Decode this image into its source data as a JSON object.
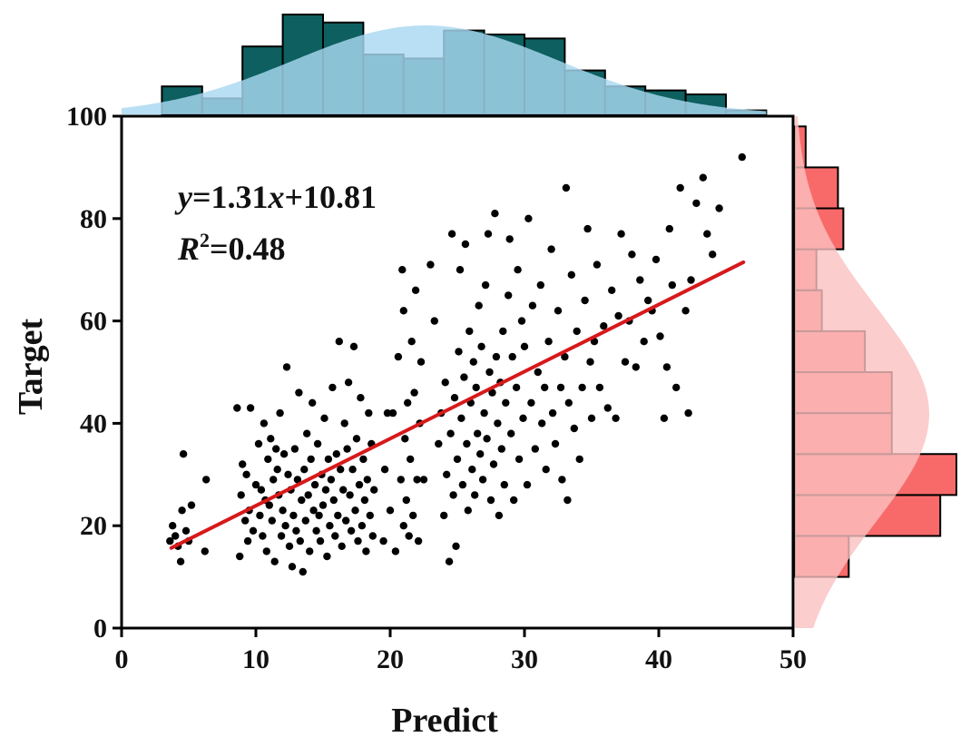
{
  "chart_data": {
    "type": "scatter",
    "xlabel": "Predict",
    "ylabel": "Target",
    "xlim": [
      0,
      50
    ],
    "ylim": [
      0,
      100
    ],
    "x_ticks": [
      "0",
      "10",
      "20",
      "30",
      "40",
      "50"
    ],
    "y_ticks": [
      "0",
      "20",
      "40",
      "60",
      "80",
      "100"
    ],
    "grid": false,
    "annotation": {
      "equation": {
        "y": "y",
        "eq": "=1.31",
        "x": "x",
        "rest": "+10.81"
      },
      "r2": {
        "R": "R",
        "sup": "2",
        "rest": "=0.48"
      }
    },
    "fit_line": {
      "slope": 1.31,
      "intercept": 10.81,
      "x_range": [
        3.7,
        46.3
      ]
    },
    "marginal_x": {
      "type": "histogram+kde",
      "bin_edges": [
        3,
        6,
        9,
        12,
        15,
        18,
        21,
        24,
        27,
        30,
        33,
        36,
        39,
        42,
        45,
        48
      ],
      "counts": [
        7,
        4,
        17,
        25,
        23,
        15,
        14,
        21,
        20,
        19,
        11,
        7,
        6,
        5,
        1
      ]
    },
    "marginal_y": {
      "type": "histogram+kde",
      "bin_edges": [
        10,
        18,
        26,
        34,
        42,
        50,
        58,
        66,
        74,
        82,
        90,
        98
      ],
      "counts": [
        10,
        27,
        30,
        18,
        18,
        13,
        5,
        4,
        9,
        8,
        2
      ]
    },
    "colors": {
      "points": "#000000",
      "fit_line": "#d7191c",
      "x_hist": "#0e5f60",
      "x_kde": "#a8d8f0",
      "y_hist": "#f86a6a",
      "y_kde": "#fbc0c0"
    },
    "points": [
      [
        3.6,
        17
      ],
      [
        3.8,
        20
      ],
      [
        4.0,
        18
      ],
      [
        4.2,
        16
      ],
      [
        4.4,
        13
      ],
      [
        4.5,
        23
      ],
      [
        4.6,
        34
      ],
      [
        4.8,
        19
      ],
      [
        5.0,
        17
      ],
      [
        5.2,
        24
      ],
      [
        6.2,
        15
      ],
      [
        6.3,
        29
      ],
      [
        8.6,
        43
      ],
      [
        8.8,
        14
      ],
      [
        8.9,
        26
      ],
      [
        9.0,
        32
      ],
      [
        9.2,
        21
      ],
      [
        9.3,
        30
      ],
      [
        9.4,
        17
      ],
      [
        9.5,
        23
      ],
      [
        9.6,
        43
      ],
      [
        9.8,
        19
      ],
      [
        10.0,
        28
      ],
      [
        10.2,
        36
      ],
      [
        10.3,
        22
      ],
      [
        10.4,
        27
      ],
      [
        10.5,
        18
      ],
      [
        10.6,
        40
      ],
      [
        10.7,
        25
      ],
      [
        10.8,
        15
      ],
      [
        10.9,
        33
      ],
      [
        11.0,
        24
      ],
      [
        11.1,
        37
      ],
      [
        11.2,
        21
      ],
      [
        11.3,
        29
      ],
      [
        11.4,
        13
      ],
      [
        11.5,
        35
      ],
      [
        11.6,
        31
      ],
      [
        11.7,
        26
      ],
      [
        11.8,
        42
      ],
      [
        11.9,
        18
      ],
      [
        12.0,
        23
      ],
      [
        12.1,
        34
      ],
      [
        12.2,
        20
      ],
      [
        12.3,
        51
      ],
      [
        12.4,
        30
      ],
      [
        12.5,
        16
      ],
      [
        12.6,
        27
      ],
      [
        12.7,
        12
      ],
      [
        12.8,
        22
      ],
      [
        12.9,
        35
      ],
      [
        13.0,
        19
      ],
      [
        13.1,
        29
      ],
      [
        13.2,
        46
      ],
      [
        13.3,
        17
      ],
      [
        13.4,
        25
      ],
      [
        13.5,
        11
      ],
      [
        13.6,
        31
      ],
      [
        13.7,
        21
      ],
      [
        13.8,
        38
      ],
      [
        13.9,
        26
      ],
      [
        14.0,
        15
      ],
      [
        14.1,
        33
      ],
      [
        14.2,
        44
      ],
      [
        14.3,
        23
      ],
      [
        14.4,
        28
      ],
      [
        14.5,
        19
      ],
      [
        14.6,
        36
      ],
      [
        14.7,
        22
      ],
      [
        14.8,
        17
      ],
      [
        14.9,
        30
      ],
      [
        15.0,
        24
      ],
      [
        15.1,
        41
      ],
      [
        15.2,
        27
      ],
      [
        15.3,
        14
      ],
      [
        15.4,
        33
      ],
      [
        15.5,
        20
      ],
      [
        15.6,
        29
      ],
      [
        15.7,
        47
      ],
      [
        15.8,
        25
      ],
      [
        15.9,
        18
      ],
      [
        16.0,
        34
      ],
      [
        16.1,
        22
      ],
      [
        16.2,
        56
      ],
      [
        16.3,
        31
      ],
      [
        16.4,
        16
      ],
      [
        16.5,
        27
      ],
      [
        16.6,
        40
      ],
      [
        16.7,
        21
      ],
      [
        16.8,
        35
      ],
      [
        16.9,
        48
      ],
      [
        17.0,
        26
      ],
      [
        17.1,
        19
      ],
      [
        17.2,
        31
      ],
      [
        17.3,
        55
      ],
      [
        17.4,
        23
      ],
      [
        17.5,
        37
      ],
      [
        17.6,
        17
      ],
      [
        17.7,
        28
      ],
      [
        17.8,
        45
      ],
      [
        17.9,
        20
      ],
      [
        18.0,
        33
      ],
      [
        18.1,
        25
      ],
      [
        18.2,
        15
      ],
      [
        18.3,
        29
      ],
      [
        18.4,
        42
      ],
      [
        18.5,
        22
      ],
      [
        18.6,
        36
      ],
      [
        18.7,
        18
      ],
      [
        18.8,
        27
      ],
      [
        19.5,
        17
      ],
      [
        19.6,
        31
      ],
      [
        19.8,
        42
      ],
      [
        20.0,
        23
      ],
      [
        20.2,
        42
      ],
      [
        20.4,
        15
      ],
      [
        20.6,
        53
      ],
      [
        20.8,
        29
      ],
      [
        20.9,
        70
      ],
      [
        21.0,
        20
      ],
      [
        21.0,
        62
      ],
      [
        21.1,
        37
      ],
      [
        21.2,
        25
      ],
      [
        21.3,
        44
      ],
      [
        21.4,
        18
      ],
      [
        21.5,
        33
      ],
      [
        21.6,
        56
      ],
      [
        21.7,
        22
      ],
      [
        21.8,
        46
      ],
      [
        21.9,
        66
      ],
      [
        22.0,
        29
      ],
      [
        22.1,
        17
      ],
      [
        22.2,
        40
      ],
      [
        22.3,
        52
      ],
      [
        22.5,
        29
      ],
      [
        23.0,
        71
      ],
      [
        23.3,
        60
      ],
      [
        23.6,
        36
      ],
      [
        23.8,
        42
      ],
      [
        24.0,
        22
      ],
      [
        24.1,
        48
      ],
      [
        24.2,
        30
      ],
      [
        24.4,
        13
      ],
      [
        24.5,
        38
      ],
      [
        24.6,
        77
      ],
      [
        24.7,
        26
      ],
      [
        24.8,
        45
      ],
      [
        24.9,
        16
      ],
      [
        25.0,
        33
      ],
      [
        25.1,
        54
      ],
      [
        25.2,
        70
      ],
      [
        25.3,
        41
      ],
      [
        25.4,
        28
      ],
      [
        25.5,
        49
      ],
      [
        25.6,
        75
      ],
      [
        25.7,
        36
      ],
      [
        25.8,
        23
      ],
      [
        25.9,
        58
      ],
      [
        26.0,
        44
      ],
      [
        26.1,
        31
      ],
      [
        26.2,
        52
      ],
      [
        26.3,
        26
      ],
      [
        26.4,
        47
      ],
      [
        26.5,
        38
      ],
      [
        26.6,
        63
      ],
      [
        26.7,
        34
      ],
      [
        26.8,
        55
      ],
      [
        26.9,
        29
      ],
      [
        27.0,
        42
      ],
      [
        27.1,
        67
      ],
      [
        27.2,
        37
      ],
      [
        27.3,
        77
      ],
      [
        27.4,
        50
      ],
      [
        27.5,
        25
      ],
      [
        27.6,
        46
      ],
      [
        27.7,
        32
      ],
      [
        27.8,
        81
      ],
      [
        27.9,
        53
      ],
      [
        28.0,
        40
      ],
      [
        28.1,
        22
      ],
      [
        28.2,
        48
      ],
      [
        28.3,
        35
      ],
      [
        28.4,
        58
      ],
      [
        28.5,
        28
      ],
      [
        28.6,
        44
      ],
      [
        28.8,
        65
      ],
      [
        28.9,
        76
      ],
      [
        29.0,
        38
      ],
      [
        29.1,
        53
      ],
      [
        29.2,
        25
      ],
      [
        29.4,
        47
      ],
      [
        29.5,
        70
      ],
      [
        29.6,
        33
      ],
      [
        29.8,
        60
      ],
      [
        29.9,
        41
      ],
      [
        30.0,
        55
      ],
      [
        30.2,
        28
      ],
      [
        30.3,
        80
      ],
      [
        30.5,
        44
      ],
      [
        30.6,
        63
      ],
      [
        30.8,
        35
      ],
      [
        31.0,
        50
      ],
      [
        31.2,
        67
      ],
      [
        31.3,
        40
      ],
      [
        31.5,
        47
      ],
      [
        31.6,
        31
      ],
      [
        31.8,
        56
      ],
      [
        32.0,
        74
      ],
      [
        32.1,
        42
      ],
      [
        32.3,
        36
      ],
      [
        32.5,
        62
      ],
      [
        32.7,
        47
      ],
      [
        32.8,
        29
      ],
      [
        33.0,
        53
      ],
      [
        33.1,
        86
      ],
      [
        33.2,
        25
      ],
      [
        33.3,
        44
      ],
      [
        33.5,
        69
      ],
      [
        33.7,
        39
      ],
      [
        33.9,
        58
      ],
      [
        34.1,
        33
      ],
      [
        34.3,
        47
      ],
      [
        34.5,
        64
      ],
      [
        34.7,
        78
      ],
      [
        34.9,
        52
      ],
      [
        35.0,
        41
      ],
      [
        35.2,
        56
      ],
      [
        35.4,
        71
      ],
      [
        35.6,
        47
      ],
      [
        35.9,
        59
      ],
      [
        36.2,
        43
      ],
      [
        36.5,
        66
      ],
      [
        36.8,
        41
      ],
      [
        37.0,
        61
      ],
      [
        37.2,
        77
      ],
      [
        37.5,
        52
      ],
      [
        37.8,
        60
      ],
      [
        38.0,
        73
      ],
      [
        38.3,
        51
      ],
      [
        38.6,
        68
      ],
      [
        38.9,
        56
      ],
      [
        39.2,
        64
      ],
      [
        39.5,
        62
      ],
      [
        39.8,
        72
      ],
      [
        40.1,
        57
      ],
      [
        40.4,
        41
      ],
      [
        40.6,
        51
      ],
      [
        40.8,
        78
      ],
      [
        41.0,
        67
      ],
      [
        41.3,
        47
      ],
      [
        41.6,
        86
      ],
      [
        42.0,
        62
      ],
      [
        42.2,
        42
      ],
      [
        42.4,
        68
      ],
      [
        42.8,
        83
      ],
      [
        43.3,
        88
      ],
      [
        43.6,
        77
      ],
      [
        44.0,
        73
      ],
      [
        44.5,
        82
      ],
      [
        46.2,
        92
      ]
    ]
  }
}
